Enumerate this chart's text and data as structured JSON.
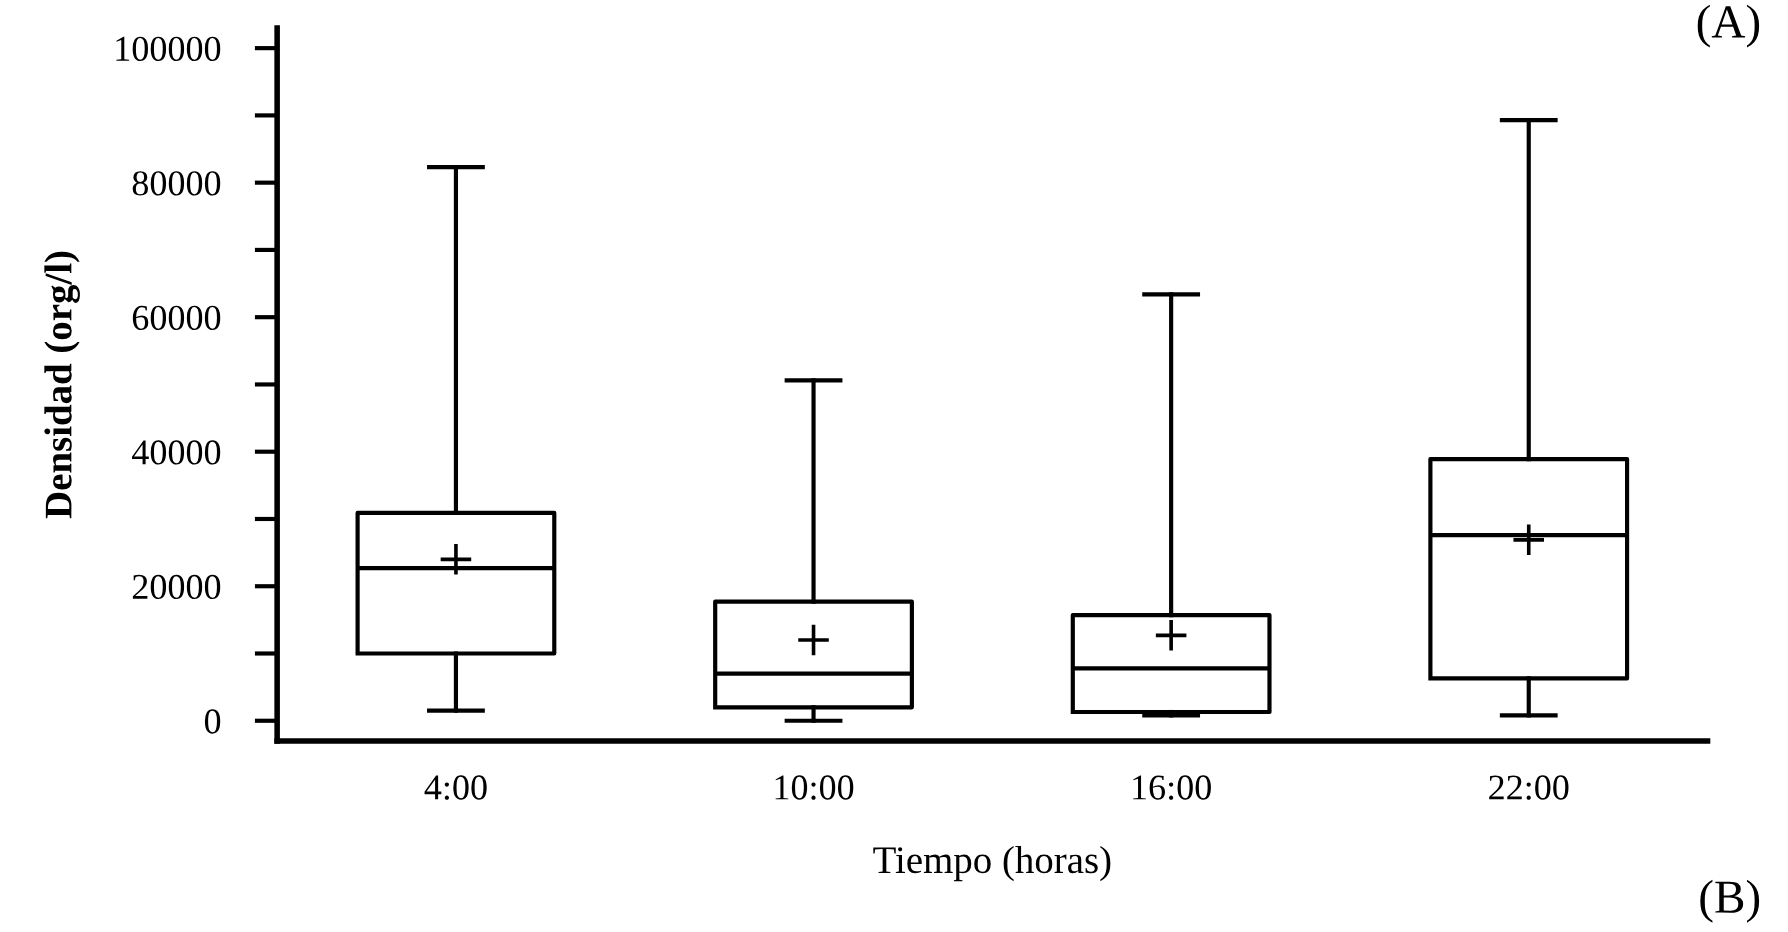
{
  "chart_data": {
    "type": "box",
    "xlabel": "Tiempo (horas)",
    "ylabel": "Densidad (org/l)",
    "categories": [
      "4:00",
      "10:00",
      "16:00",
      "22:00"
    ],
    "boxes": [
      {
        "low": 1500,
        "q1": 10000,
        "median": 22700,
        "q3": 30900,
        "high": 82300,
        "mean": 24000
      },
      {
        "low": 0,
        "q1": 2000,
        "median": 7000,
        "q3": 17700,
        "high": 50600,
        "mean": 12000
      },
      {
        "low": 800,
        "q1": 1300,
        "median": 7800,
        "q3": 15700,
        "high": 63400,
        "mean": 12700
      },
      {
        "low": 800,
        "q1": 6300,
        "median": 27600,
        "q3": 38900,
        "high": 89300,
        "mean": 26900
      }
    ],
    "ylim": [
      -3000,
      103000
    ],
    "yticks": [
      0,
      {
        "value": 10000,
        "label": null
      },
      20000,
      {
        "value": 30000,
        "label": null
      },
      40000,
      {
        "value": 50000,
        "label": null
      },
      60000,
      {
        "value": 70000,
        "label": null
      },
      80000,
      {
        "value": 90000,
        "label": null
      },
      100000
    ],
    "grid": false,
    "color": "#000000",
    "annotations": [
      "(A)",
      "(B)"
    ]
  }
}
